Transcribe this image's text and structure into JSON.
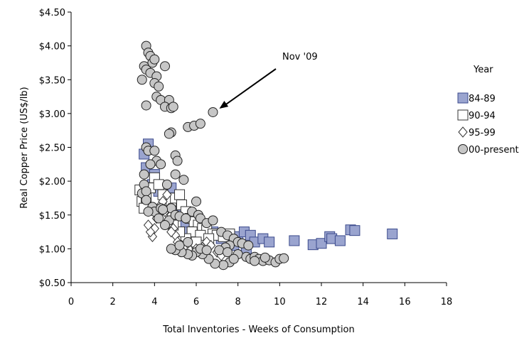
{
  "chart_data": {
    "type": "scatter",
    "title": "",
    "xlabel": "Total Inventories - Weeks of Consumption",
    "ylabel": "Real Copper Price (US$/lb)",
    "xlim": [
      0,
      18
    ],
    "ylim": [
      0.5,
      4.5
    ],
    "x_ticks": [
      0,
      2,
      4,
      6,
      8,
      10,
      12,
      14,
      16,
      18
    ],
    "x_tick_labels": [
      "0",
      "2",
      "4",
      "6",
      "8",
      "10",
      "12",
      "14",
      "16",
      "18"
    ],
    "y_ticks": [
      0.5,
      1.0,
      1.5,
      2.0,
      2.5,
      3.0,
      3.5,
      4.0,
      4.5
    ],
    "y_tick_labels": [
      "$0.50",
      "$1.00",
      "$1.50",
      "$2.00",
      "$2.50",
      "$3.00",
      "$3.50",
      "$4.00",
      "$4.50"
    ],
    "grid": false,
    "legend": {
      "title": "Year",
      "position": "right"
    },
    "annotation": {
      "text": "Nov '09",
      "points_to": [
        6.8,
        3.02
      ]
    },
    "series": [
      {
        "name": "84-89",
        "marker": "square",
        "color": "#9aa4cf",
        "edge": "#3b4a8c",
        "points": [
          [
            3.5,
            2.4
          ],
          [
            3.7,
            2.55
          ],
          [
            3.6,
            2.2
          ],
          [
            4.0,
            2.1
          ],
          [
            3.9,
            1.95
          ],
          [
            4.2,
            1.85
          ],
          [
            4.8,
            1.9
          ],
          [
            5.0,
            1.6
          ],
          [
            5.3,
            1.5
          ],
          [
            5.5,
            1.35
          ],
          [
            6.0,
            1.4
          ],
          [
            6.4,
            1.3
          ],
          [
            6.8,
            1.25
          ],
          [
            7.2,
            1.15
          ],
          [
            7.6,
            1.2
          ],
          [
            8.0,
            1.18
          ],
          [
            8.3,
            1.25
          ],
          [
            8.6,
            1.2
          ],
          [
            8.8,
            1.1
          ],
          [
            9.2,
            1.15
          ],
          [
            9.5,
            1.1
          ],
          [
            10.7,
            1.12
          ],
          [
            11.6,
            1.06
          ],
          [
            12.0,
            1.08
          ],
          [
            12.4,
            1.18
          ],
          [
            12.5,
            1.15
          ],
          [
            12.9,
            1.12
          ],
          [
            13.4,
            1.28
          ],
          [
            13.6,
            1.27
          ],
          [
            15.4,
            1.22
          ],
          [
            7.8,
            1.05
          ],
          [
            8.4,
            1.0
          ],
          [
            6.0,
            1.2
          ],
          [
            5.6,
            1.25
          ],
          [
            6.6,
            1.1
          ]
        ]
      },
      {
        "name": "90-94",
        "marker": "square",
        "color": "#ffffff",
        "edge": "#333333",
        "points": [
          [
            3.3,
            1.87
          ],
          [
            3.4,
            1.7
          ],
          [
            3.5,
            1.6
          ],
          [
            3.6,
            1.75
          ],
          [
            3.8,
            1.9
          ],
          [
            4.0,
            2.05
          ],
          [
            4.2,
            1.95
          ],
          [
            4.4,
            1.8
          ],
          [
            4.6,
            1.65
          ],
          [
            4.8,
            1.7
          ],
          [
            5.0,
            1.75
          ],
          [
            5.2,
            1.8
          ],
          [
            5.3,
            1.65
          ],
          [
            5.5,
            1.55
          ],
          [
            5.7,
            1.45
          ],
          [
            5.9,
            1.4
          ],
          [
            6.1,
            1.35
          ],
          [
            6.3,
            1.3
          ],
          [
            6.5,
            1.28
          ],
          [
            6.8,
            1.22
          ],
          [
            7.0,
            1.2
          ],
          [
            7.3,
            1.18
          ],
          [
            7.6,
            1.22
          ],
          [
            5.8,
            1.25
          ],
          [
            6.2,
            1.2
          ],
          [
            6.0,
            1.1
          ],
          [
            5.5,
            1.15
          ],
          [
            5.2,
            1.25
          ],
          [
            4.9,
            1.35
          ],
          [
            6.6,
            1.15
          ]
        ]
      },
      {
        "name": "95-99",
        "marker": "diamond",
        "color": "#ffffff",
        "edge": "#333333",
        "points": [
          [
            3.9,
            1.18
          ],
          [
            4.0,
            1.3
          ],
          [
            4.1,
            1.45
          ],
          [
            4.2,
            1.5
          ],
          [
            4.3,
            1.65
          ],
          [
            4.5,
            1.55
          ],
          [
            4.6,
            1.4
          ],
          [
            4.7,
            1.6
          ],
          [
            4.8,
            1.5
          ],
          [
            4.9,
            1.3
          ],
          [
            5.0,
            1.2
          ],
          [
            5.1,
            1.1
          ],
          [
            5.3,
            1.05
          ],
          [
            5.5,
            1.0
          ],
          [
            5.7,
            0.98
          ],
          [
            6.0,
            1.0
          ],
          [
            6.3,
            1.02
          ],
          [
            6.5,
            1.1
          ],
          [
            6.7,
            1.05
          ],
          [
            7.0,
            0.95
          ],
          [
            7.2,
            0.9
          ],
          [
            7.4,
            1.0
          ],
          [
            4.4,
            1.7
          ],
          [
            4.6,
            1.8
          ],
          [
            4.8,
            1.25
          ],
          [
            3.8,
            1.25
          ],
          [
            5.6,
            1.08
          ],
          [
            3.7,
            1.35
          ]
        ]
      },
      {
        "name": "00-present",
        "marker": "circle",
        "color": "#c6c6c6",
        "edge": "#222222",
        "points": [
          [
            3.6,
            4.0
          ],
          [
            3.7,
            3.9
          ],
          [
            3.8,
            3.85
          ],
          [
            3.9,
            3.75
          ],
          [
            4.0,
            3.8
          ],
          [
            3.5,
            3.7
          ],
          [
            3.6,
            3.65
          ],
          [
            3.8,
            3.6
          ],
          [
            4.1,
            3.55
          ],
          [
            4.0,
            3.45
          ],
          [
            3.4,
            3.5
          ],
          [
            4.5,
            3.7
          ],
          [
            4.2,
            3.4
          ],
          [
            4.1,
            3.25
          ],
          [
            4.3,
            3.2
          ],
          [
            4.7,
            3.2
          ],
          [
            4.5,
            3.1
          ],
          [
            4.8,
            3.08
          ],
          [
            3.6,
            3.12
          ],
          [
            4.9,
            3.1
          ],
          [
            4.8,
            2.72
          ],
          [
            4.7,
            2.7
          ],
          [
            5.6,
            2.8
          ],
          [
            5.9,
            2.82
          ],
          [
            6.2,
            2.85
          ],
          [
            6.8,
            3.02
          ],
          [
            3.6,
            2.5
          ],
          [
            3.7,
            2.45
          ],
          [
            4.0,
            2.45
          ],
          [
            4.1,
            2.3
          ],
          [
            4.3,
            2.25
          ],
          [
            3.8,
            2.25
          ],
          [
            5.0,
            2.38
          ],
          [
            5.1,
            2.3
          ],
          [
            3.5,
            2.1
          ],
          [
            5.0,
            2.1
          ],
          [
            5.4,
            2.02
          ],
          [
            4.6,
            1.95
          ],
          [
            3.5,
            1.95
          ],
          [
            3.4,
            1.82
          ],
          [
            3.6,
            1.85
          ],
          [
            3.6,
            1.72
          ],
          [
            3.9,
            1.62
          ],
          [
            4.0,
            1.55
          ],
          [
            3.7,
            1.55
          ],
          [
            4.2,
            1.45
          ],
          [
            4.8,
            1.6
          ],
          [
            4.3,
            1.6
          ],
          [
            4.4,
            1.58
          ],
          [
            4.7,
            1.42
          ],
          [
            4.5,
            1.35
          ],
          [
            5.0,
            1.5
          ],
          [
            5.2,
            1.48
          ],
          [
            5.5,
            1.45
          ],
          [
            5.8,
            1.55
          ],
          [
            6.0,
            1.7
          ],
          [
            6.1,
            1.5
          ],
          [
            6.2,
            1.45
          ],
          [
            6.5,
            1.38
          ],
          [
            6.8,
            1.42
          ],
          [
            7.2,
            1.25
          ],
          [
            7.5,
            1.2
          ],
          [
            7.8,
            1.15
          ],
          [
            8.0,
            1.1
          ],
          [
            7.6,
            1.05
          ],
          [
            7.4,
            1.02
          ],
          [
            8.2,
            1.08
          ],
          [
            8.5,
            1.05
          ],
          [
            7.1,
            0.98
          ],
          [
            7.5,
            0.95
          ],
          [
            8.0,
            0.92
          ],
          [
            8.4,
            0.88
          ],
          [
            8.6,
            0.85
          ],
          [
            8.8,
            0.88
          ],
          [
            9.0,
            0.85
          ],
          [
            9.2,
            0.82
          ],
          [
            9.5,
            0.83
          ],
          [
            9.8,
            0.8
          ],
          [
            10.0,
            0.85
          ],
          [
            10.2,
            0.86
          ],
          [
            7.6,
            0.8
          ],
          [
            7.3,
            0.76
          ],
          [
            6.9,
            0.78
          ],
          [
            6.6,
            0.85
          ],
          [
            6.3,
            0.92
          ],
          [
            6.0,
            0.95
          ],
          [
            5.8,
            0.9
          ],
          [
            5.6,
            0.92
          ],
          [
            5.3,
            0.95
          ],
          [
            5.0,
            0.98
          ],
          [
            4.8,
            1.0
          ],
          [
            5.2,
            1.05
          ],
          [
            5.6,
            1.1
          ],
          [
            6.2,
            1.0
          ],
          [
            6.5,
            0.98
          ],
          [
            8.8,
            0.82
          ],
          [
            9.3,
            0.87
          ],
          [
            7.8,
            0.85
          ]
        ]
      }
    ]
  }
}
